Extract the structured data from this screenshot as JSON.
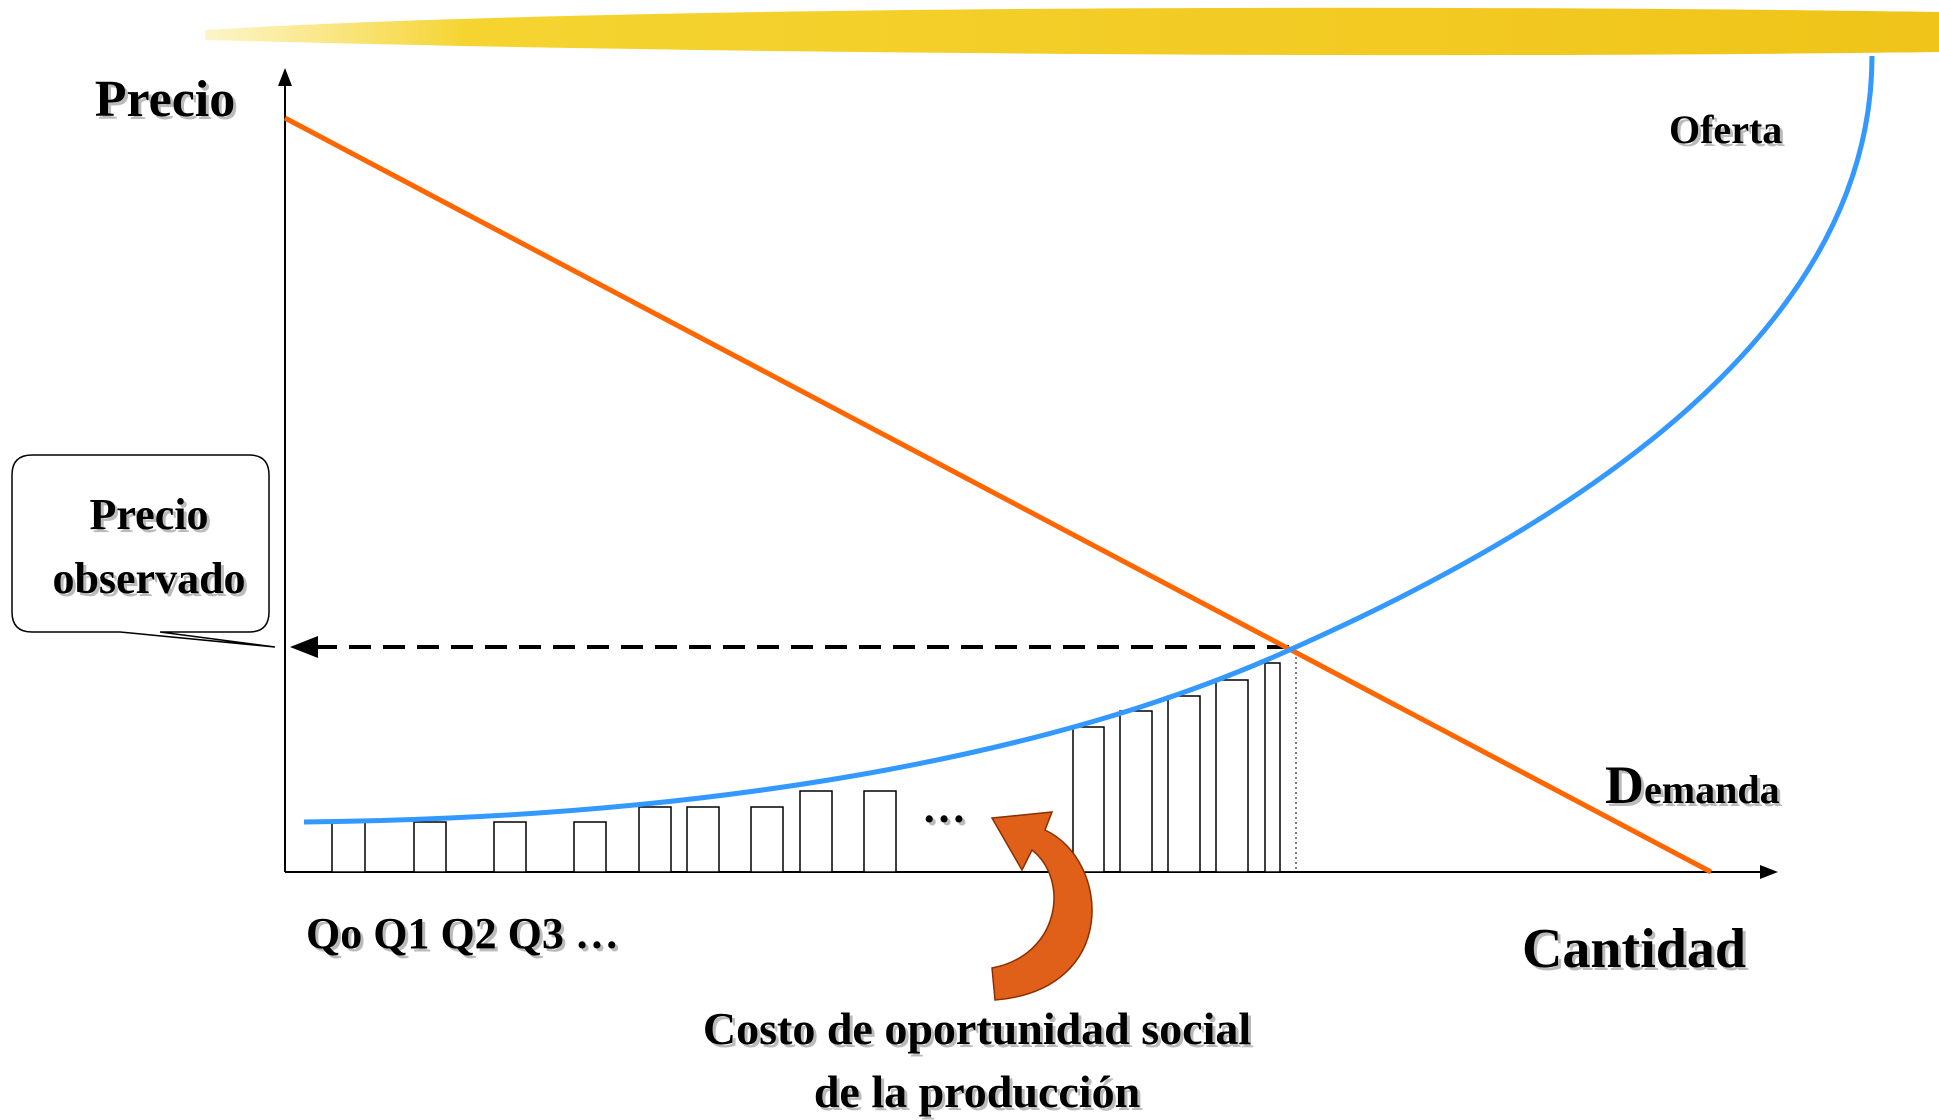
{
  "axes": {
    "y_label": "Precio",
    "x_label": "Cantidad"
  },
  "curves": {
    "supply": "Oferta",
    "demand": "Demanda"
  },
  "callout": {
    "line1": "Precio",
    "line2": "observado"
  },
  "quantities": {
    "label": "Qo Q1 Q2 Q3 …",
    "ellipsis": "…"
  },
  "note": {
    "line1": "Costo de oportunidad social",
    "line2": "de la producción"
  }
}
